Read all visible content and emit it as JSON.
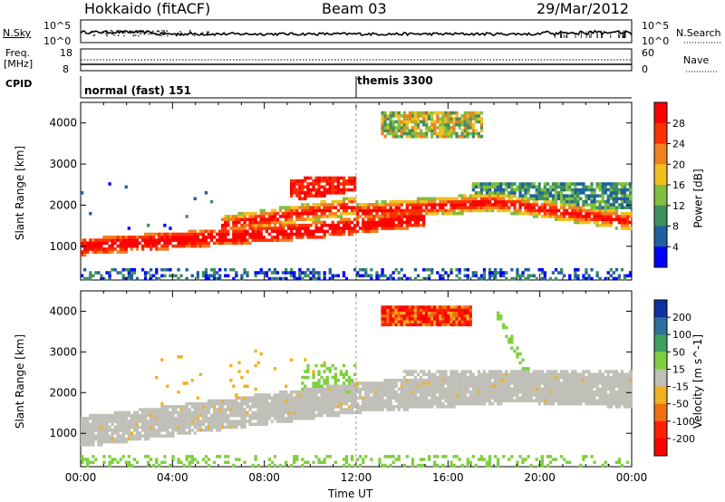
{
  "header": {
    "station": "Hokkaido (fitACF)",
    "beam": "Beam 03",
    "date": "29/Mar/2012"
  },
  "top_strip": {
    "nsky_label": "N.Sky",
    "nsearch_label": "N.Search",
    "left_ticks": [
      "10^5",
      "10^0"
    ],
    "right_ticks": [
      "10^5",
      "10^0"
    ],
    "freq_label_1": "Freq.",
    "freq_label_2": "[MHz]",
    "freq_ticks": [
      "18",
      "8"
    ],
    "nave_label": "Nave",
    "nave_ticks": [
      "60",
      "0"
    ],
    "cpid_label": "CPID",
    "cpid_modes": [
      {
        "name": "normal (fast) 151",
        "start_hour": 0
      },
      {
        "name": "themis 3300",
        "start_hour": 12
      }
    ]
  },
  "chart_data": [
    {
      "type": "heatmap",
      "name": "Power",
      "xlabel": "Time UT",
      "ylabel": "Slant Range [km]",
      "x_range_hours": [
        0,
        24
      ],
      "ylim": [
        180,
        4500
      ],
      "yticks": [
        1000,
        2000,
        3000,
        4000
      ],
      "colorbar_label": "Power [dB]",
      "colorbar_ticks": [
        4,
        8,
        12,
        16,
        20,
        24,
        28
      ],
      "colorbar_range": [
        0,
        32
      ],
      "colors": [
        "#0000ff",
        "#2060a0",
        "#3f8f5f",
        "#7fbf3f",
        "#f0c020",
        "#f08020",
        "#ff3000",
        "#ff0000"
      ],
      "features": [
        {
          "desc": "band",
          "t0": 0,
          "t1": 12,
          "r0": 900,
          "r1": 1500
        },
        {
          "desc": "band",
          "t0": 8,
          "t1": 24,
          "r0": 1200,
          "r1": 2300
        },
        {
          "desc": "patch",
          "t0": 13,
          "t1": 17.5,
          "r0": 3600,
          "r1": 4200
        }
      ]
    },
    {
      "type": "heatmap",
      "name": "Velocity",
      "xlabel": "Time UT",
      "ylabel": "Slant Range [km]",
      "x_range_hours": [
        0,
        24
      ],
      "ylim": [
        180,
        4500
      ],
      "yticks": [
        1000,
        2000,
        3000,
        4000
      ],
      "colorbar_label": "Velocity [m s^-1]",
      "colorbar_ticks": [
        200,
        100,
        50,
        15,
        -15,
        -50,
        -100,
        -200
      ],
      "colors": [
        "#1030a0",
        "#2f6f9f",
        "#3f9f5f",
        "#7fcf3f",
        "#c0c0b8",
        "#f0b020",
        "#f07010",
        "#ff2000",
        "#ff0000"
      ],
      "features": [
        {
          "desc": "ground scatter",
          "t0": 0,
          "t1": 24,
          "r0": 800,
          "r1": 2500
        },
        {
          "desc": "negative velocity patch",
          "t0": 13,
          "t1": 17,
          "r0": 3600,
          "r1": 4100
        }
      ]
    }
  ],
  "x_axis": {
    "label": "Time UT",
    "ticks": [
      "00:00",
      "04:00",
      "08:00",
      "12:00",
      "16:00",
      "20:00",
      "00:00"
    ]
  }
}
